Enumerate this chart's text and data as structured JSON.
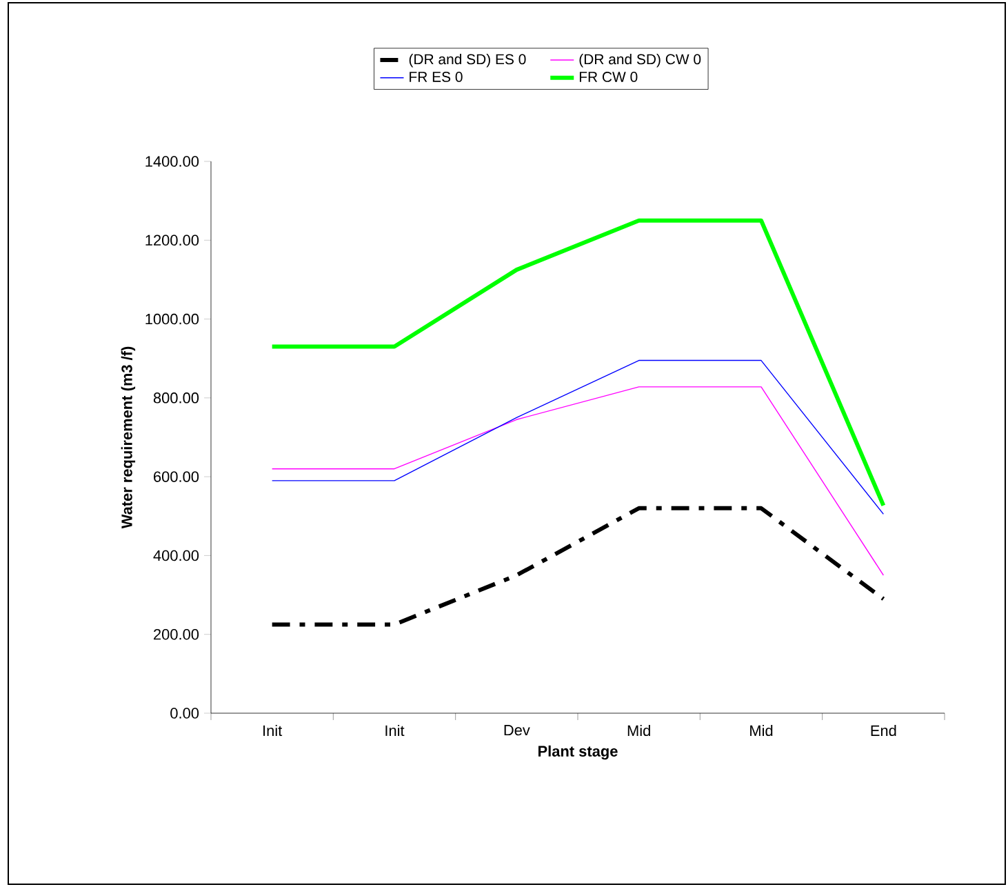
{
  "chart_data": {
    "type": "line",
    "xlabel": "Plant stage",
    "ylabel": "Water requirement (m3 /f)",
    "categories": [
      "Init",
      "Init",
      "Dev",
      "Mid",
      "Mid",
      "End"
    ],
    "series": [
      {
        "name": "(DR and SD) ES 0",
        "color": "#000000",
        "line_style": "dashed",
        "values": [
          225,
          225,
          350,
          520,
          520,
          290
        ]
      },
      {
        "name": "(DR and SD) CW 0",
        "color": "#ff00ff",
        "values": [
          620,
          620,
          745,
          828,
          828,
          350
        ]
      },
      {
        "name": "FR ES 0",
        "color": "#0000ff",
        "values": [
          590,
          590,
          750,
          895,
          895,
          505
        ]
      },
      {
        "name": "FR CW 0",
        "color": "#00ff00",
        "values": [
          930,
          930,
          1125,
          1250,
          1250,
          527
        ]
      }
    ],
    "ylim": [
      0,
      1400
    ],
    "yticks": [
      {
        "value": 0,
        "label": "0.00"
      },
      {
        "value": 200,
        "label": "200.00"
      },
      {
        "value": 400,
        "label": "400.00"
      },
      {
        "value": 600,
        "label": "600.00"
      },
      {
        "value": 800,
        "label": "800.00"
      },
      {
        "value": 1000,
        "label": "1000.00"
      },
      {
        "value": 1200,
        "label": "1200.00"
      },
      {
        "value": 1400,
        "label": "1400.00"
      }
    ],
    "legend": "top",
    "grid": false,
    "marker": "none",
    "line_style": "solid"
  }
}
